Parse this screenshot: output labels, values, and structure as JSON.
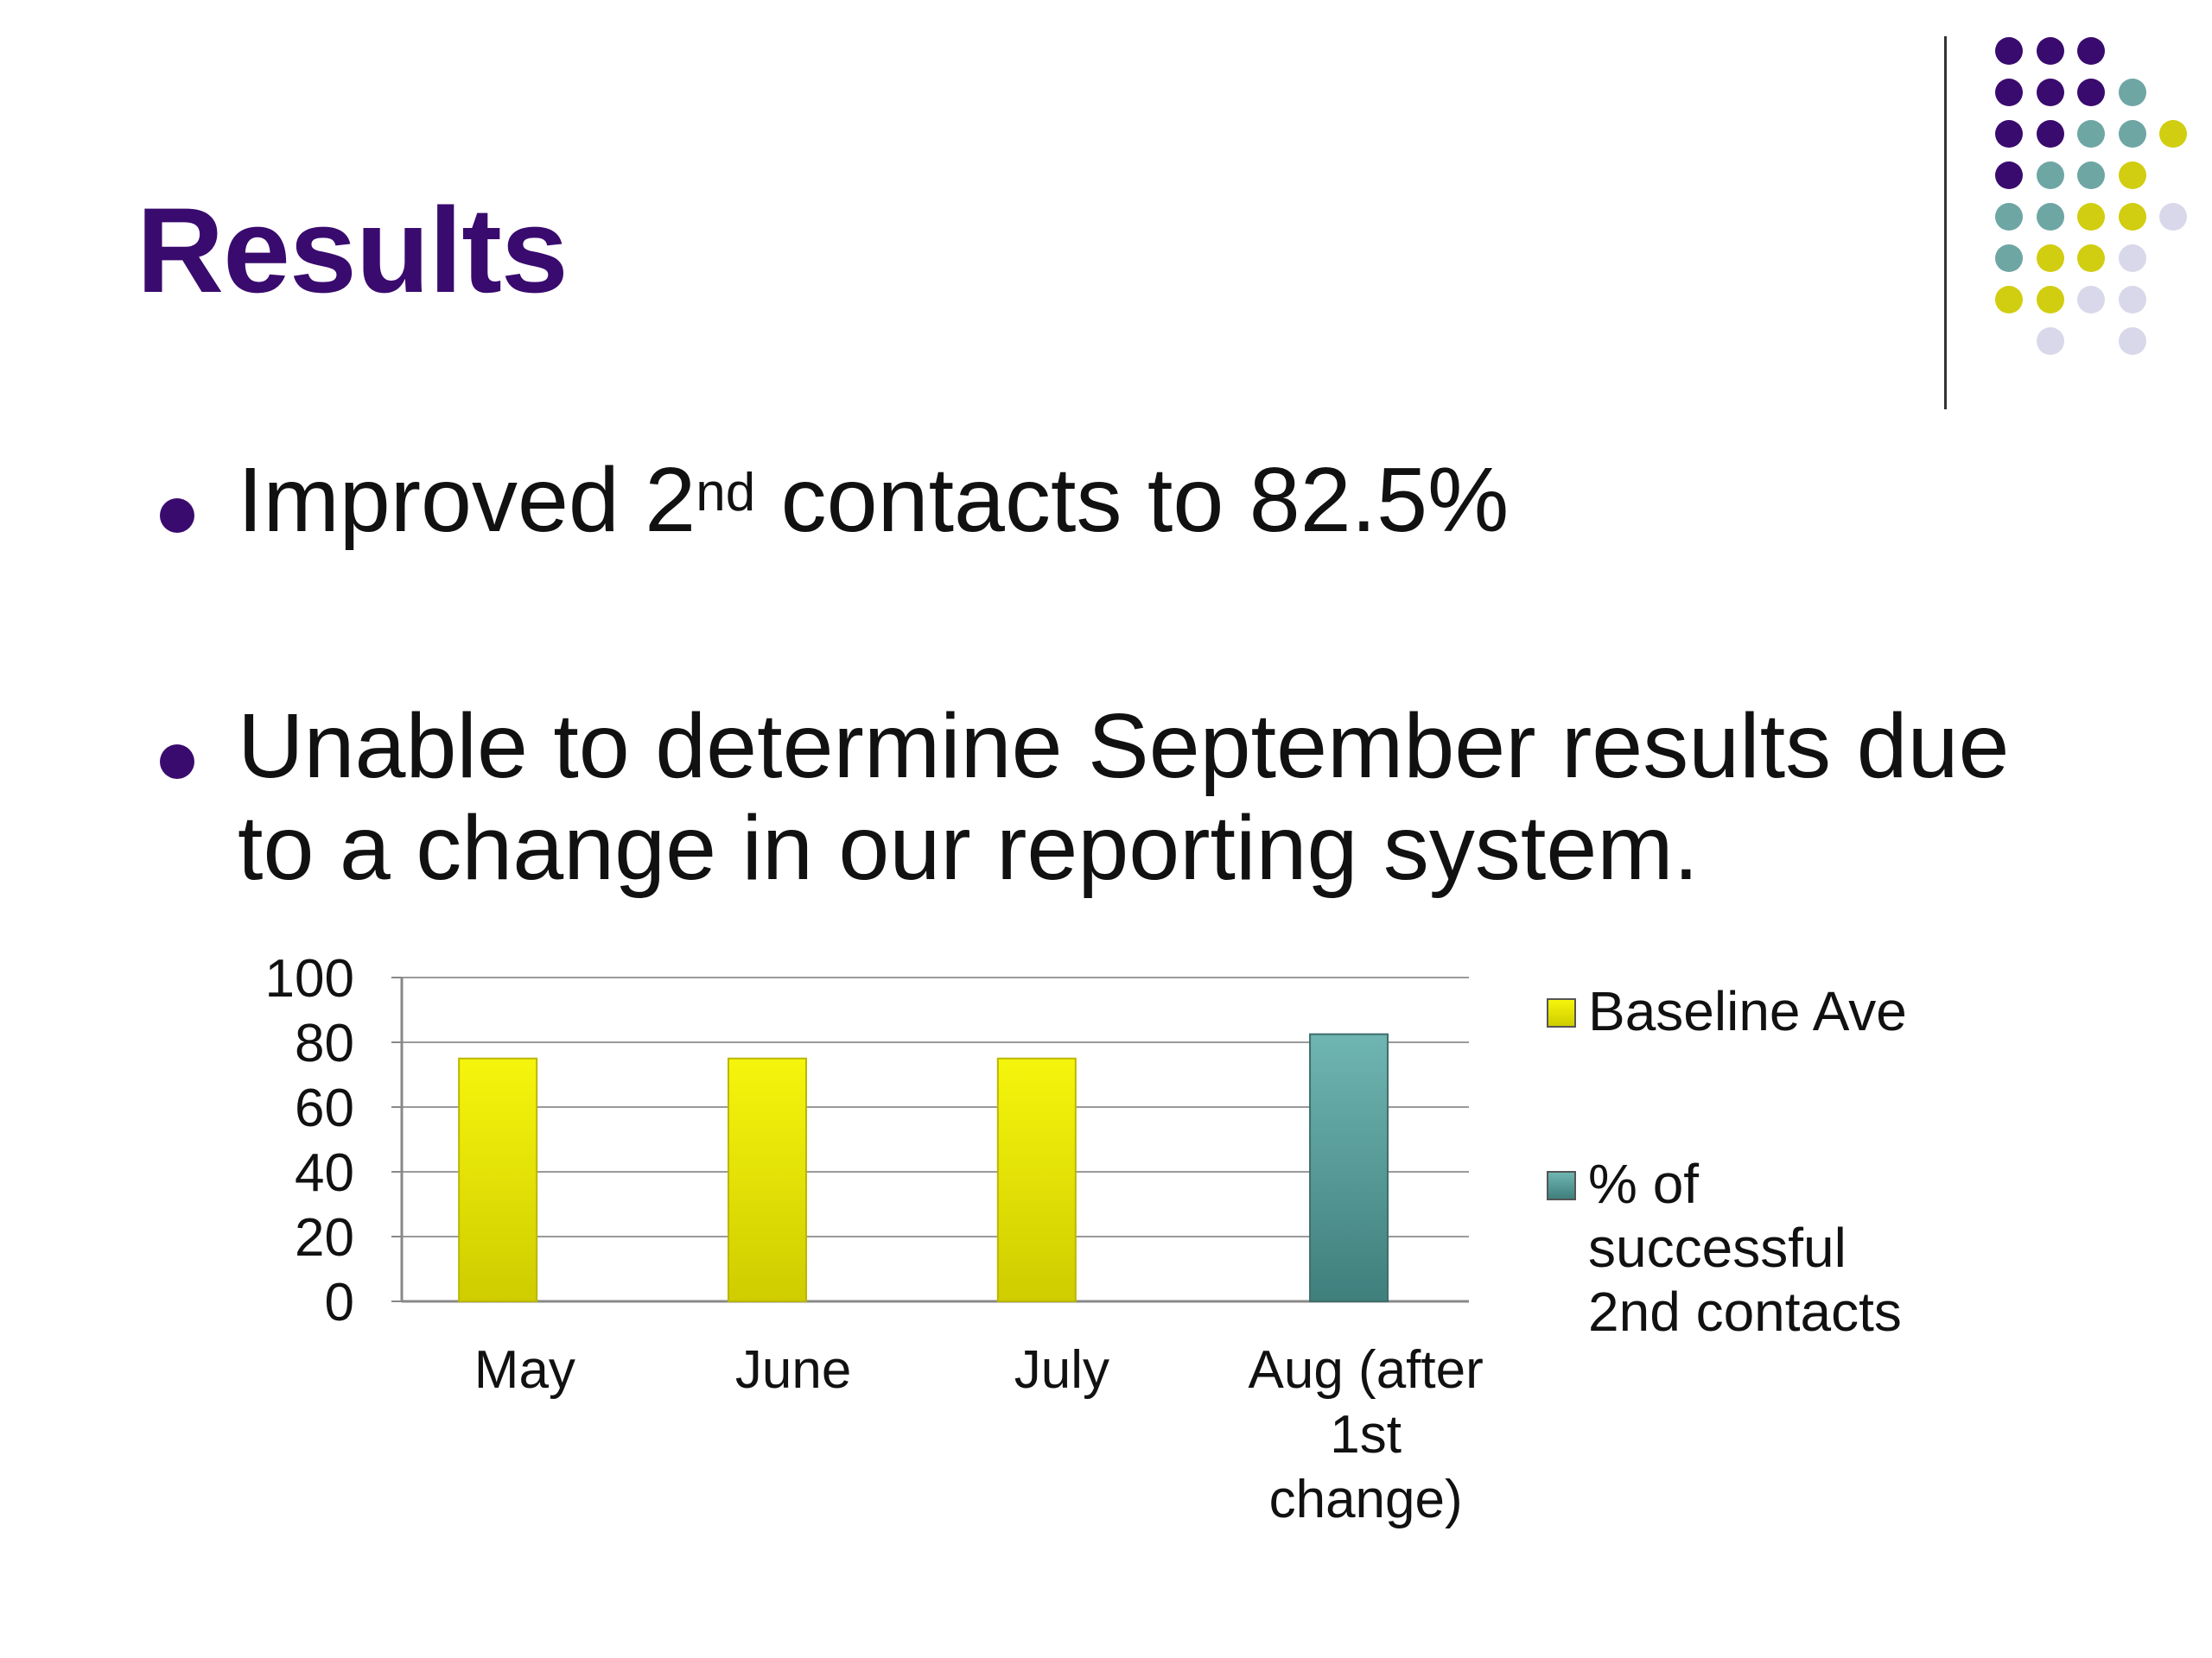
{
  "slide": {
    "title": "Results",
    "bullets": [
      {
        "before": "Improved 2",
        "sup": "nd",
        "after": " contacts to 82.5%"
      },
      {
        "line1": "Unable to determine September results due",
        "line2": "to a change in our reporting system."
      }
    ]
  },
  "colors": {
    "title": "#3a0b6e",
    "bullet": "#3a0b6e",
    "baseline": "#e8e600",
    "successful": "#5ea7a3"
  },
  "decor": {
    "dot_colors": {
      "purple": "#3a0b6e",
      "teal": "#6ea6a4",
      "yellow": "#d1cd10",
      "lavender": "#d8d8ea"
    }
  },
  "chart_data": {
    "type": "bar",
    "categories": [
      "May",
      "June",
      "July",
      "Aug (after 1st change)"
    ],
    "series": [
      {
        "name": "Baseline Ave",
        "values": [
          75,
          75,
          75,
          null
        ],
        "color": "#e8e600"
      },
      {
        "name": "% of successful 2nd contacts",
        "values": [
          null,
          null,
          null,
          82.5
        ],
        "color": "#5ea7a3"
      }
    ],
    "ylim": [
      0,
      100
    ],
    "yticks": [
      0,
      20,
      40,
      60,
      80,
      100
    ],
    "grid": true,
    "legend": "right",
    "title": "",
    "xlabel": "",
    "ylabel": ""
  }
}
